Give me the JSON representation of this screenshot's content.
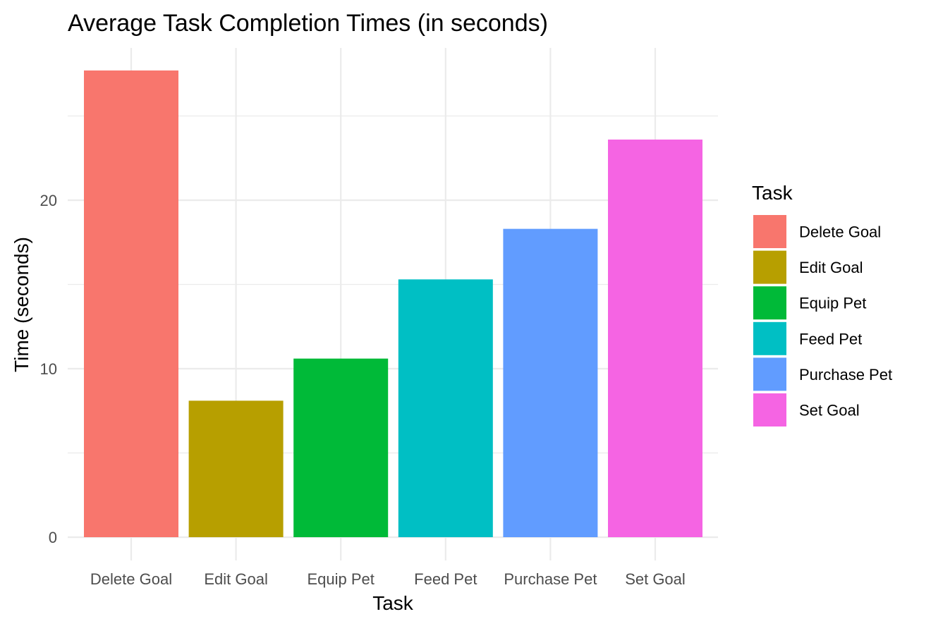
{
  "chart_data": {
    "type": "bar",
    "title": "Average Task Completion Times (in seconds)",
    "xlabel": "Task",
    "ylabel": "Time (seconds)",
    "categories": [
      "Delete Goal",
      "Edit Goal",
      "Equip Pet",
      "Feed Pet",
      "Purchase Pet",
      "Set Goal"
    ],
    "values": [
      27.7,
      8.1,
      10.6,
      15.3,
      18.3,
      23.6
    ],
    "colors": [
      "#F8766D",
      "#B79F00",
      "#00BA38",
      "#00BFC4",
      "#619CFF",
      "#F564E3"
    ],
    "ylim": [
      0,
      29
    ],
    "yticks": [
      0,
      10,
      20
    ],
    "y_minor_ticks": [
      5,
      15,
      25
    ],
    "grid": true,
    "legend": {
      "title": "Task",
      "position": "right",
      "entries": [
        "Delete Goal",
        "Edit Goal",
        "Equip Pet",
        "Feed Pet",
        "Purchase Pet",
        "Set Goal"
      ]
    }
  }
}
